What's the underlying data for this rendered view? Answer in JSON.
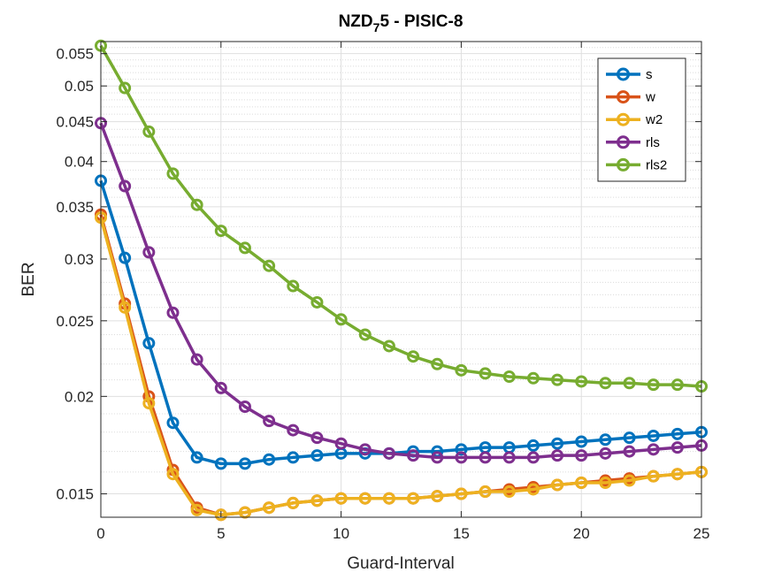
{
  "chart_data": {
    "type": "line",
    "title": "NZD",
    "title_subscript": "7",
    "title_rest": "5 - PISIC-8",
    "xlabel": "Guard-Interval",
    "ylabel": "BER",
    "yscale": "log",
    "xlim": [
      0,
      25
    ],
    "ylim": [
      0.014,
      0.057
    ],
    "grid": "major solid, minor dotted",
    "legend_position": "top-right",
    "x_ticks": [
      {
        "value": 0,
        "label": "0"
      },
      {
        "value": 5,
        "label": "5"
      },
      {
        "value": 10,
        "label": "10"
      },
      {
        "value": 15,
        "label": "15"
      },
      {
        "value": 20,
        "label": "20"
      },
      {
        "value": 25,
        "label": "25"
      }
    ],
    "y_ticks": [
      {
        "value": 0.015,
        "label": "0.015"
      },
      {
        "value": 0.02,
        "label": "0.02"
      },
      {
        "value": 0.025,
        "label": "0.025"
      },
      {
        "value": 0.03,
        "label": "0.03"
      },
      {
        "value": 0.035,
        "label": "0.035"
      },
      {
        "value": 0.04,
        "label": "0.04"
      },
      {
        "value": 0.045,
        "label": "0.045"
      },
      {
        "value": 0.05,
        "label": "0.05"
      },
      {
        "value": 0.055,
        "label": "0.055"
      }
    ],
    "y_minor_ticks": [
      0.016,
      0.017,
      0.018,
      0.019,
      0.021,
      0.022,
      0.023,
      0.024,
      0.026,
      0.027,
      0.028,
      0.029,
      0.031,
      0.032,
      0.033,
      0.034,
      0.036,
      0.037,
      0.038,
      0.039,
      0.041,
      0.042,
      0.043,
      0.044,
      0.046,
      0.047,
      0.048,
      0.049,
      0.051,
      0.052,
      0.053,
      0.054,
      0.056
    ],
    "x": [
      0,
      1,
      2,
      3,
      4,
      5,
      6,
      7,
      8,
      9,
      10,
      11,
      12,
      13,
      14,
      15,
      16,
      17,
      18,
      19,
      20,
      21,
      22,
      23,
      24,
      25
    ],
    "series": [
      {
        "name": "s",
        "color": "#0072BD",
        "values": [
          0.0378,
          0.0301,
          0.0234,
          0.0185,
          0.0167,
          0.0164,
          0.0164,
          0.0166,
          0.0167,
          0.0168,
          0.0169,
          0.0169,
          0.0169,
          0.017,
          0.017,
          0.0171,
          0.0172,
          0.0172,
          0.0173,
          0.0174,
          0.0175,
          0.0176,
          0.0177,
          0.0178,
          0.0179,
          0.018
        ]
      },
      {
        "name": "w",
        "color": "#D95319",
        "values": [
          0.0342,
          0.0263,
          0.02,
          0.0161,
          0.0144,
          0.0141,
          0.0142,
          0.0144,
          0.0146,
          0.0147,
          0.0148,
          0.0148,
          0.0148,
          0.0148,
          0.0149,
          0.015,
          0.0151,
          0.0152,
          0.0153,
          0.0154,
          0.0155,
          0.0156,
          0.0157,
          0.0158,
          0.0159,
          0.016
        ]
      },
      {
        "name": "w2",
        "color": "#EDB120",
        "values": [
          0.0339,
          0.026,
          0.0196,
          0.0159,
          0.0143,
          0.0141,
          0.0142,
          0.0144,
          0.0146,
          0.0147,
          0.0148,
          0.0148,
          0.0148,
          0.0148,
          0.0149,
          0.015,
          0.0151,
          0.0151,
          0.0152,
          0.0154,
          0.0155,
          0.0155,
          0.0156,
          0.0158,
          0.0159,
          0.016
        ]
      },
      {
        "name": "rls",
        "color": "#7E2F8E",
        "values": [
          0.0448,
          0.0372,
          0.0306,
          0.0256,
          0.0223,
          0.0205,
          0.0194,
          0.0186,
          0.0181,
          0.0177,
          0.0174,
          0.0171,
          0.0169,
          0.0168,
          0.0167,
          0.0167,
          0.0167,
          0.0167,
          0.0167,
          0.0168,
          0.0168,
          0.0169,
          0.017,
          0.0171,
          0.0172,
          0.0173
        ]
      },
      {
        "name": "rls2",
        "color": "#77AC30",
        "values": [
          0.0563,
          0.0497,
          0.0437,
          0.0386,
          0.0352,
          0.0326,
          0.031,
          0.0294,
          0.0277,
          0.0264,
          0.0251,
          0.024,
          0.0232,
          0.0225,
          0.022,
          0.0216,
          0.0214,
          0.0212,
          0.0211,
          0.021,
          0.0209,
          0.0208,
          0.0208,
          0.0207,
          0.0207,
          0.0206
        ]
      }
    ]
  }
}
